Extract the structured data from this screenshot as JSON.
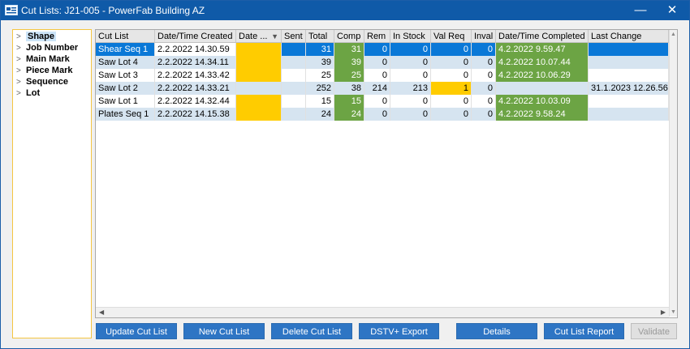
{
  "window": {
    "title": "Cut Lists: J21-005 - PowerFab Building AZ",
    "minimize": "—",
    "close": "✕"
  },
  "tree": {
    "items": [
      "Shape",
      "Job Number",
      "Main Mark",
      "Piece Mark",
      "Sequence",
      "Lot"
    ]
  },
  "grid": {
    "columns": [
      "Cut List",
      "Date/Time Created",
      "Date ...",
      "Sent",
      "Total",
      "Comp",
      "Rem",
      "In Stock",
      "Val Req",
      "Inval",
      "Date/Time Completed",
      "Last Change"
    ],
    "rows": [
      [
        "Shear Seq 1",
        "2.2.2022 14.30.59",
        "",
        "",
        "31",
        "31",
        "0",
        "0",
        "0",
        "0",
        "4.2.2022 9.59.47",
        ""
      ],
      [
        "Saw Lot 4",
        "2.2.2022 14.34.11",
        "",
        "",
        "39",
        "39",
        "0",
        "0",
        "0",
        "0",
        "4.2.2022 10.07.44",
        ""
      ],
      [
        "Saw Lot 3",
        "2.2.2022 14.33.42",
        "",
        "",
        "25",
        "25",
        "0",
        "0",
        "0",
        "0",
        "4.2.2022 10.06.29",
        ""
      ],
      [
        "Saw Lot 2",
        "2.2.2022 14.33.21",
        "",
        "",
        "252",
        "38",
        "214",
        "213",
        "1",
        "0",
        "",
        "31.1.2023 12.26.56"
      ],
      [
        "Saw Lot 1",
        "2.2.2022 14.32.44",
        "",
        "",
        "15",
        "15",
        "0",
        "0",
        "0",
        "0",
        "4.2.2022 10.03.09",
        ""
      ],
      [
        "Plates Seq 1",
        "2.2.2022 14.15.38",
        "",
        "",
        "24",
        "24",
        "0",
        "0",
        "0",
        "0",
        "4.2.2022 9.58.24",
        ""
      ]
    ]
  },
  "buttons": [
    "Update Cut List",
    "New Cut List",
    "Delete Cut List",
    "DSTV+ Export",
    "Details",
    "Cut List Report",
    "Validate"
  ],
  "colors": {
    "titlebar": "#0f5aa8",
    "selected_row": "#0a78d7",
    "alt_row": "#d6e4f0",
    "complete": "#6ca444",
    "pending": "#ffcc00",
    "button": "#2e75c4"
  }
}
